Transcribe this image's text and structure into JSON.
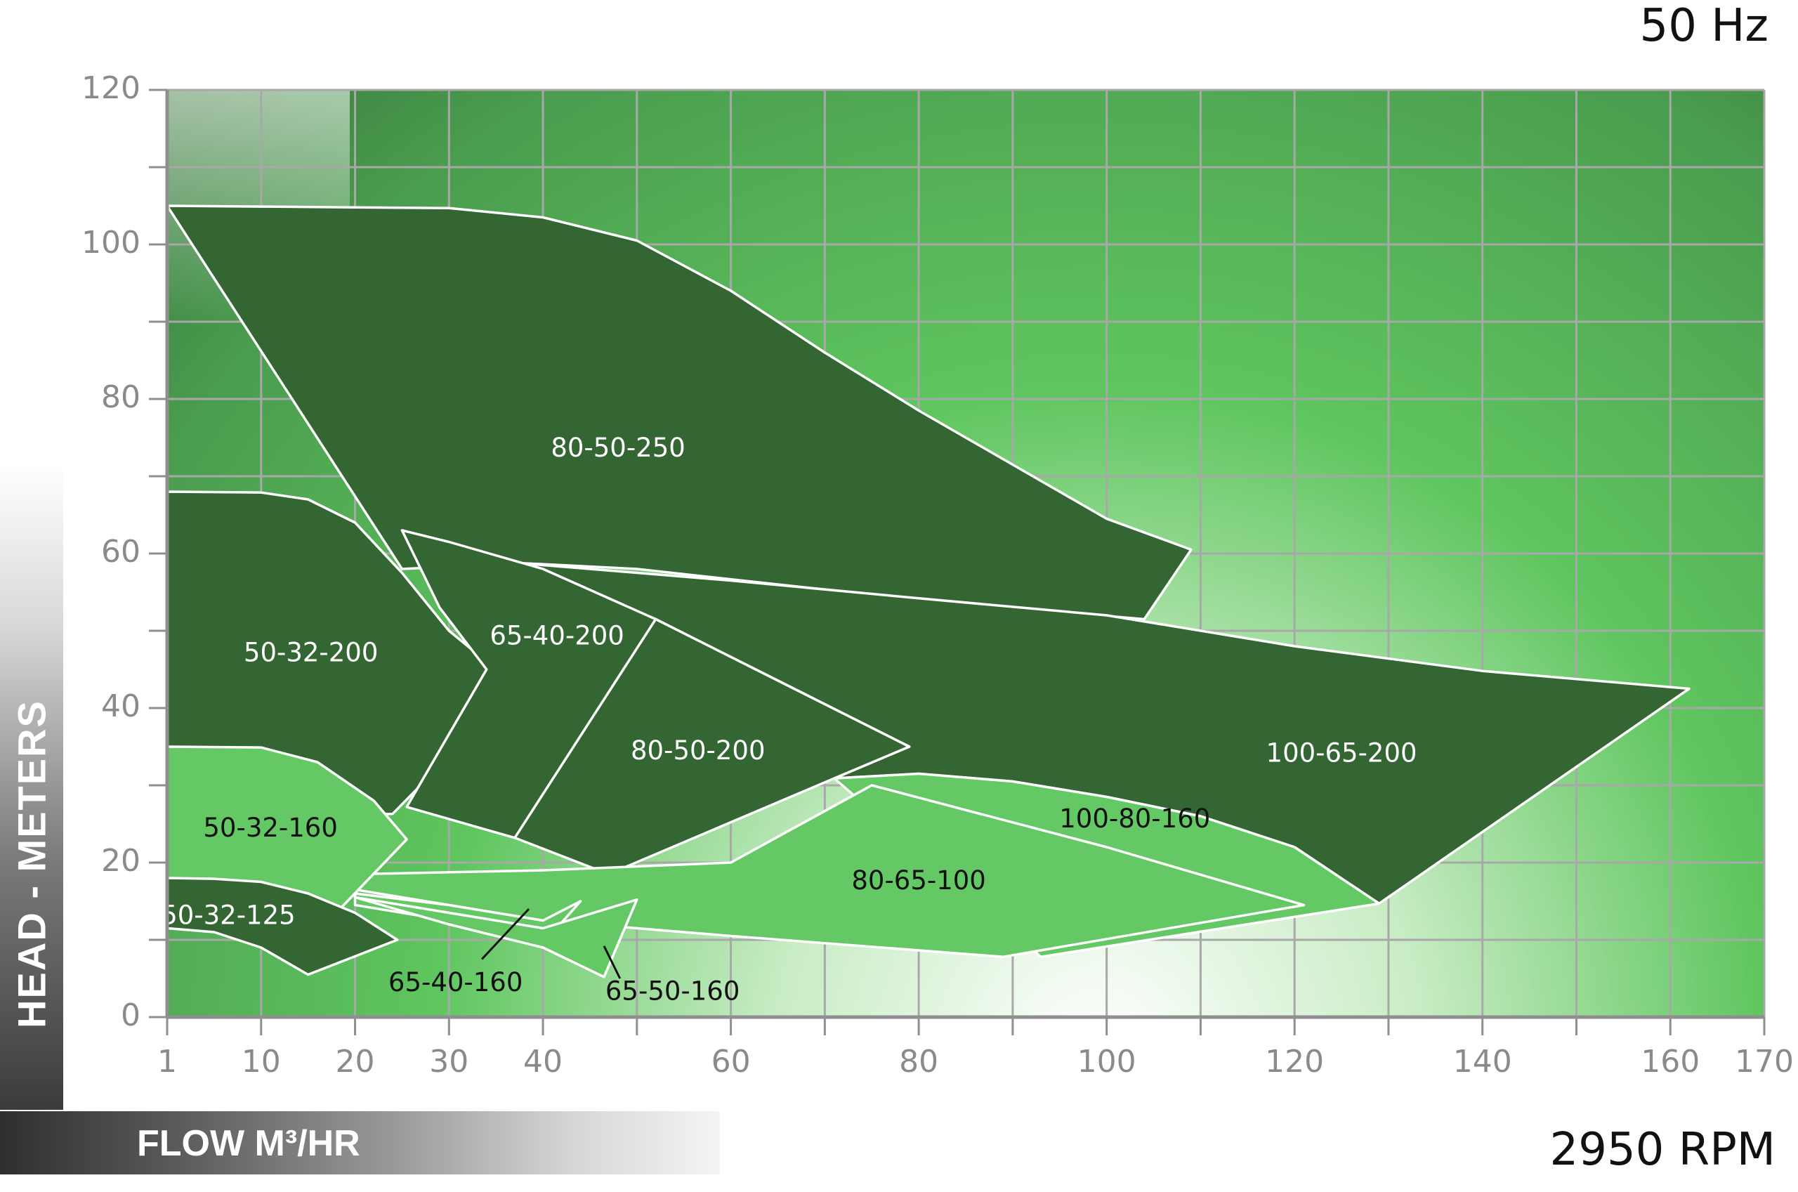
{
  "header": {
    "frequency": "50 Hz",
    "speed": "2950 RPM"
  },
  "axes": {
    "ylabel": "HEAD - METERS",
    "xlabel": "FLOW M³/HR"
  },
  "colors": {
    "region_dark": "#336633",
    "region_light": "#64c864",
    "outline": "#ffffff",
    "grid": "#a8a8a8",
    "axis": "#8f8f8f",
    "tick_text": "#8a8a8a",
    "bg_dark": "#2f6332",
    "bg_mid": "#5fc65f",
    "bg_light": "#ffffff"
  },
  "chart_data": {
    "type": "area",
    "title": "",
    "xlabel": "FLOW M³/HR",
    "ylabel": "HEAD - METERS",
    "xlim": [
      0,
      170
    ],
    "ylim": [
      0,
      120
    ],
    "x_ticks": [
      {
        "value": 1,
        "label": "1"
      },
      {
        "value": 10,
        "label": "10"
      },
      {
        "value": 20,
        "label": "20"
      },
      {
        "value": 30,
        "label": "30"
      },
      {
        "value": 40,
        "label": "40"
      },
      {
        "value": 60,
        "label": "60"
      },
      {
        "value": 80,
        "label": "80"
      },
      {
        "value": 100,
        "label": "100"
      },
      {
        "value": 120,
        "label": "120"
      },
      {
        "value": 140,
        "label": "140"
      },
      {
        "value": 160,
        "label": "160"
      },
      {
        "value": 170,
        "label": "170"
      }
    ],
    "y_ticks": [
      0,
      20,
      40,
      60,
      80,
      100,
      120
    ],
    "grid": true,
    "regions": [
      {
        "name": "80-50-250",
        "fill": "dark",
        "label_at": [
          48,
          73.5
        ],
        "points": [
          [
            0,
            105
          ],
          [
            10,
            104.9
          ],
          [
            20,
            104.8
          ],
          [
            30,
            104.7
          ],
          [
            40,
            103.5
          ],
          [
            50,
            100.5
          ],
          [
            60,
            94
          ],
          [
            70,
            86
          ],
          [
            80,
            78.5
          ],
          [
            90,
            71.5
          ],
          [
            100,
            64.5
          ],
          [
            109,
            60.5
          ],
          [
            104,
            51.5
          ],
          [
            80,
            54
          ],
          [
            50,
            58
          ],
          [
            37,
            58.8
          ],
          [
            30,
            58.3
          ],
          [
            25,
            58
          ]
        ]
      },
      {
        "name": "100-65-200",
        "fill": "dark",
        "label_at": [
          125,
          34
        ],
        "points": [
          [
            37,
            58.8
          ],
          [
            60,
            56.5
          ],
          [
            80,
            54.2
          ],
          [
            100,
            52
          ],
          [
            120,
            48
          ],
          [
            140,
            44.8
          ],
          [
            162,
            42.5
          ],
          [
            129,
            14.7
          ],
          [
            120,
            22
          ],
          [
            110,
            26
          ],
          [
            100,
            28.5
          ],
          [
            90,
            30.5
          ],
          [
            80,
            31.5
          ],
          [
            71,
            30.9
          ],
          [
            79,
            35
          ],
          [
            52,
            51.5
          ]
        ]
      },
      {
        "name": "50-32-200",
        "fill": "dark",
        "label_at": [
          15.3,
          47
        ],
        "points": [
          [
            0,
            68
          ],
          [
            10,
            67.9
          ],
          [
            15,
            67
          ],
          [
            20,
            64
          ],
          [
            25,
            57.5
          ],
          [
            30,
            50
          ],
          [
            35,
            45
          ],
          [
            29,
            32.5
          ],
          [
            24,
            26.3
          ],
          [
            0,
            26
          ]
        ]
      },
      {
        "name": "65-40-200",
        "fill": "dark",
        "label_at": [
          41.5,
          49.2
        ],
        "points": [
          [
            25,
            63
          ],
          [
            30,
            61.5
          ],
          [
            40,
            58
          ],
          [
            52,
            51.5
          ],
          [
            44,
            29.8
          ],
          [
            37,
            23.2
          ],
          [
            25.5,
            27.2
          ],
          [
            34,
            45
          ],
          [
            29,
            53
          ]
        ]
      },
      {
        "name": "80-50-200",
        "fill": "dark",
        "label_at": [
          56.5,
          34.3
        ],
        "points": [
          [
            52,
            51.5
          ],
          [
            79,
            35
          ],
          [
            71,
            30.9
          ],
          [
            47,
            18.5
          ],
          [
            37,
            23.2
          ]
        ]
      },
      {
        "name": "100-80-160",
        "fill": "light",
        "label_at": [
          103,
          25.5
        ],
        "points": [
          [
            71,
            30.9
          ],
          [
            80,
            31.5
          ],
          [
            90,
            30.5
          ],
          [
            100,
            28.5
          ],
          [
            110,
            26
          ],
          [
            120,
            22
          ],
          [
            129,
            14.7
          ],
          [
            93,
            7.8
          ]
        ]
      },
      {
        "name": "80-65-100",
        "fill": "light",
        "label_at": [
          80,
          17.5
        ],
        "points": [
          [
            20,
            18.5
          ],
          [
            40,
            19
          ],
          [
            60,
            20
          ],
          [
            75,
            30
          ],
          [
            100,
            22
          ],
          [
            121,
            14.5
          ],
          [
            89,
            7.8
          ],
          [
            60,
            10.5
          ],
          [
            40,
            12.5
          ],
          [
            20,
            16.5
          ]
        ]
      },
      {
        "name": "50-32-160",
        "fill": "light",
        "label_at": [
          11,
          24.3
        ],
        "points": [
          [
            0,
            35
          ],
          [
            10,
            34.9
          ],
          [
            16,
            33
          ],
          [
            22,
            28
          ],
          [
            25.5,
            23
          ],
          [
            18,
            13.5
          ],
          [
            0,
            16
          ]
        ]
      },
      {
        "name": "65-40-160",
        "fill": "light",
        "label_at": [
          30.7,
          4.3
        ],
        "points": [
          [
            20,
            16
          ],
          [
            30,
            14.5
          ],
          [
            40,
            12.5
          ],
          [
            44,
            15
          ],
          [
            40,
            9.5
          ],
          [
            30,
            12.5
          ],
          [
            20,
            14.5
          ]
        ]
      },
      {
        "name": "65-50-160",
        "fill": "light",
        "label_at": [
          53.8,
          3.2
        ],
        "points": [
          [
            20,
            15.5
          ],
          [
            30,
            13.5
          ],
          [
            40,
            11.5
          ],
          [
            50,
            15.2
          ],
          [
            46.5,
            5.2
          ],
          [
            40,
            9
          ],
          [
            30,
            12
          ]
        ]
      },
      {
        "name": "50-32-125",
        "fill": "dark",
        "label_at": [
          6.5,
          13
        ],
        "points": [
          [
            0,
            18
          ],
          [
            5,
            17.9
          ],
          [
            10,
            17.5
          ],
          [
            15,
            16
          ],
          [
            20,
            13.5
          ],
          [
            24.5,
            10
          ],
          [
            15,
            5.5
          ],
          [
            10,
            9
          ],
          [
            5,
            11
          ],
          [
            0,
            11.5
          ]
        ]
      }
    ],
    "leaders": [
      {
        "name": "65-40-160",
        "from": [
          33.5,
          7.5
        ],
        "to": [
          38.5,
          14
        ]
      },
      {
        "name": "65-50-160",
        "from": [
          46.5,
          9.2
        ],
        "to": [
          48.2,
          5
        ]
      }
    ]
  }
}
